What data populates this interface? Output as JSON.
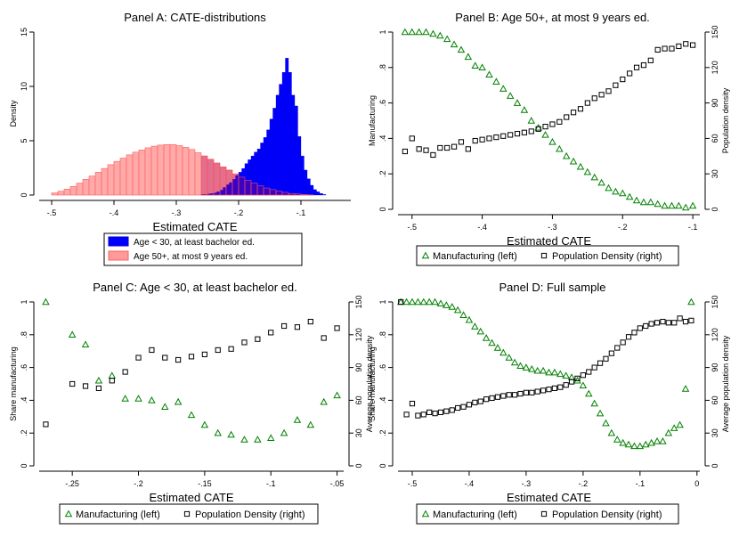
{
  "chart_data": [
    {
      "panel": "A",
      "type": "bar",
      "title": "Panel A: CATE-distributions",
      "xlabel": "Estimated CATE",
      "ylabel": "Density",
      "xlim": [
        -0.52,
        -0.02
      ],
      "ylim": [
        0,
        15
      ],
      "xticks": [
        -0.5,
        -0.4,
        -0.3,
        -0.2,
        -0.1
      ],
      "xtick_labels": [
        "-.5",
        "-.4",
        "-.3",
        "-.2",
        "-.1"
      ],
      "yticks": [
        0,
        5,
        10,
        15
      ],
      "ytick_labels": [
        "0",
        "5",
        "10",
        "15"
      ],
      "grid": false,
      "legend_position": "bottom",
      "legend_entries": [
        "Age < 30, at least bachelor ed.",
        "Age 50+, at most 9 years ed."
      ],
      "bin_width": 0.01,
      "series": [
        {
          "name": "Age 50+, at most 9 years ed.",
          "color": "#ff9a9a",
          "bin_starts": [
            -0.5,
            -0.49,
            -0.48,
            -0.47,
            -0.46,
            -0.45,
            -0.44,
            -0.43,
            -0.42,
            -0.41,
            -0.4,
            -0.39,
            -0.38,
            -0.37,
            -0.36,
            -0.35,
            -0.34,
            -0.33,
            -0.32,
            -0.31,
            -0.3,
            -0.29,
            -0.28,
            -0.27,
            -0.26,
            -0.25,
            -0.24,
            -0.23,
            -0.22,
            -0.21,
            -0.2,
            -0.19,
            -0.18,
            -0.17,
            -0.16,
            -0.15,
            -0.14,
            -0.13,
            -0.12,
            -0.11,
            -0.1,
            -0.09
          ],
          "values": [
            0.2,
            0.35,
            0.55,
            0.8,
            1.1,
            1.45,
            1.75,
            2.1,
            2.45,
            2.8,
            3.1,
            3.4,
            3.7,
            3.95,
            4.15,
            4.35,
            4.5,
            4.6,
            4.65,
            4.65,
            4.55,
            4.4,
            4.2,
            3.9,
            3.6,
            3.3,
            2.95,
            2.6,
            2.3,
            1.95,
            1.65,
            1.35,
            1.1,
            0.85,
            0.65,
            0.5,
            0.35,
            0.25,
            0.15,
            0.1,
            0.05,
            0.02
          ]
        },
        {
          "name": "Age < 30, at least bachelor ed.",
          "color": "#0000ff",
          "bin_starts": [
            -0.26,
            -0.255,
            -0.25,
            -0.245,
            -0.24,
            -0.235,
            -0.23,
            -0.225,
            -0.22,
            -0.215,
            -0.21,
            -0.205,
            -0.2,
            -0.195,
            -0.19,
            -0.185,
            -0.18,
            -0.175,
            -0.17,
            -0.165,
            -0.16,
            -0.155,
            -0.15,
            -0.145,
            -0.14,
            -0.135,
            -0.13,
            -0.125,
            -0.12,
            -0.115,
            -0.11,
            -0.105,
            -0.1,
            -0.095,
            -0.09,
            -0.085,
            -0.08,
            -0.075,
            -0.07,
            -0.065
          ],
          "bin_width": 0.005,
          "values": [
            0.05,
            0.05,
            0.1,
            0.15,
            0.2,
            0.3,
            0.45,
            0.7,
            0.95,
            1.15,
            1.45,
            1.8,
            2.1,
            2.45,
            2.9,
            3.25,
            3.6,
            3.95,
            4.25,
            4.8,
            5.3,
            6.0,
            7.0,
            8.0,
            9.2,
            10.2,
            11.3,
            12.6,
            11.3,
            9.2,
            8.2,
            5.4,
            3.6,
            2.3,
            1.5,
            0.9,
            0.5,
            0.3,
            0.15,
            0.05
          ]
        }
      ]
    },
    {
      "panel": "B",
      "type": "scatter",
      "title": "Panel B: Age 50+, at most 9 years ed.",
      "xlabel": "Estimated CATE",
      "ylabel": "Manufacturing",
      "y2label": "Population density",
      "xlim": [
        -0.52,
        -0.09
      ],
      "ylim": [
        0,
        1
      ],
      "y2lim": [
        0,
        150
      ],
      "xticks": [
        -0.5,
        -0.4,
        -0.3,
        -0.2,
        -0.1
      ],
      "xtick_labels": [
        "-.5",
        "-.4",
        "-.3",
        "-.2",
        "-.1"
      ],
      "yticks": [
        0,
        0.2,
        0.4,
        0.6,
        0.8,
        1
      ],
      "ytick_labels": [
        "0",
        ".2",
        ".4",
        ".6",
        ".8",
        "1"
      ],
      "y2ticks": [
        0,
        30,
        60,
        90,
        120,
        150
      ],
      "y2tick_labels": [
        "0",
        "30",
        "60",
        "90",
        "120",
        "150"
      ],
      "grid": false,
      "legend_position": "bottom",
      "legend_entries": [
        "Manufacturing (left)",
        "Population Density (right)"
      ],
      "series": [
        {
          "name": "Manufacturing (left)",
          "axis": "left",
          "marker": "triangle",
          "color": "#008000",
          "x": [
            -0.51,
            -0.5,
            -0.49,
            -0.48,
            -0.47,
            -0.46,
            -0.45,
            -0.44,
            -0.43,
            -0.42,
            -0.41,
            -0.4,
            -0.39,
            -0.38,
            -0.37,
            -0.36,
            -0.35,
            -0.34,
            -0.33,
            -0.32,
            -0.31,
            -0.3,
            -0.29,
            -0.28,
            -0.27,
            -0.26,
            -0.25,
            -0.24,
            -0.23,
            -0.22,
            -0.21,
            -0.2,
            -0.19,
            -0.18,
            -0.17,
            -0.16,
            -0.15,
            -0.14,
            -0.13,
            -0.12,
            -0.11,
            -0.1
          ],
          "y": [
            1.0,
            1.0,
            1.0,
            1.0,
            0.99,
            0.98,
            0.96,
            0.93,
            0.9,
            0.86,
            0.81,
            0.8,
            0.76,
            0.72,
            0.68,
            0.64,
            0.6,
            0.56,
            0.5,
            0.46,
            0.42,
            0.38,
            0.34,
            0.3,
            0.27,
            0.24,
            0.21,
            0.18,
            0.15,
            0.12,
            0.1,
            0.09,
            0.07,
            0.05,
            0.04,
            0.04,
            0.03,
            0.02,
            0.02,
            0.02,
            0.01,
            0.02
          ]
        },
        {
          "name": "Population Density (right)",
          "axis": "right",
          "marker": "square",
          "color": "#000000",
          "x": [
            -0.51,
            -0.5,
            -0.49,
            -0.48,
            -0.47,
            -0.46,
            -0.45,
            -0.44,
            -0.43,
            -0.42,
            -0.41,
            -0.4,
            -0.39,
            -0.38,
            -0.37,
            -0.36,
            -0.35,
            -0.34,
            -0.33,
            -0.32,
            -0.31,
            -0.3,
            -0.29,
            -0.28,
            -0.27,
            -0.26,
            -0.25,
            -0.24,
            -0.23,
            -0.22,
            -0.21,
            -0.2,
            -0.19,
            -0.18,
            -0.17,
            -0.16,
            -0.15,
            -0.14,
            -0.13,
            -0.12,
            -0.11,
            -0.1
          ],
          "y": [
            49,
            60,
            51,
            50,
            46,
            52,
            52,
            53,
            57,
            51,
            58,
            59,
            60,
            61,
            62,
            63,
            64,
            65,
            66,
            68,
            70,
            72,
            74,
            78,
            82,
            85,
            90,
            94,
            97,
            100,
            105,
            110,
            115,
            120,
            122,
            126,
            135,
            136,
            136,
            138,
            140,
            139
          ]
        }
      ]
    },
    {
      "panel": "C",
      "type": "scatter",
      "title": "Panel C: Age < 30, at least bachelor ed.",
      "xlabel": "Estimated CATE",
      "ylabel": "Share manufacturing",
      "y2label": "Average population density",
      "xlim": [
        -0.275,
        -0.045
      ],
      "ylim": [
        0,
        1
      ],
      "y2lim": [
        0,
        150
      ],
      "xticks": [
        -0.25,
        -0.2,
        -0.15,
        -0.1,
        -0.05
      ],
      "xtick_labels": [
        "-.25",
        "-.2",
        "-.15",
        "-.1",
        "-.05"
      ],
      "yticks": [
        0,
        0.2,
        0.4,
        0.6,
        0.8,
        1
      ],
      "ytick_labels": [
        "0",
        ".2",
        ".4",
        ".6",
        ".8",
        "1"
      ],
      "y2ticks": [
        0,
        30,
        60,
        90,
        120,
        150
      ],
      "y2tick_labels": [
        "0",
        "30",
        "60",
        "90",
        "120",
        "150"
      ],
      "grid": false,
      "legend_position": "bottom",
      "legend_entries": [
        "Manufacturing (left)",
        "Population Density (right)"
      ],
      "series": [
        {
          "name": "Manufacturing (left)",
          "axis": "left",
          "marker": "triangle",
          "color": "#008000",
          "x": [
            -0.27,
            -0.25,
            -0.24,
            -0.23,
            -0.22,
            -0.21,
            -0.2,
            -0.19,
            -0.18,
            -0.17,
            -0.16,
            -0.15,
            -0.14,
            -0.13,
            -0.12,
            -0.11,
            -0.1,
            -0.09,
            -0.08,
            -0.07,
            -0.06,
            -0.05
          ],
          "y": [
            1.0,
            0.8,
            0.74,
            0.52,
            0.55,
            0.41,
            0.41,
            0.4,
            0.36,
            0.39,
            0.31,
            0.25,
            0.2,
            0.19,
            0.16,
            0.16,
            0.17,
            0.2,
            0.28,
            0.25,
            0.39,
            0.43
          ]
        },
        {
          "name": "Population Density (right)",
          "axis": "right",
          "marker": "square",
          "color": "#000000",
          "x": [
            -0.27,
            -0.25,
            -0.24,
            -0.23,
            -0.22,
            -0.21,
            -0.2,
            -0.19,
            -0.18,
            -0.17,
            -0.16,
            -0.15,
            -0.14,
            -0.13,
            -0.12,
            -0.11,
            -0.1,
            -0.09,
            -0.08,
            -0.07,
            -0.06,
            -0.05
          ],
          "y": [
            38,
            75,
            73,
            71,
            78,
            86,
            99,
            106,
            99,
            97,
            100,
            102,
            106,
            107,
            113,
            116,
            122,
            128,
            127,
            132,
            117,
            126
          ]
        }
      ]
    },
    {
      "panel": "D",
      "type": "scatter",
      "title": "Panel D: Full sample",
      "xlabel": "Estimated CATE",
      "ylabel": "Share manufacturing",
      "y2label": "Average population density",
      "xlim": [
        -0.525,
        0.005
      ],
      "ylim": [
        0,
        1
      ],
      "y2lim": [
        0,
        150
      ],
      "xticks": [
        -0.5,
        -0.4,
        -0.3,
        -0.2,
        -0.1,
        0
      ],
      "xtick_labels": [
        "-.5",
        "-.4",
        "-.3",
        "-.2",
        "-.1",
        "0"
      ],
      "yticks": [
        0,
        0.2,
        0.4,
        0.6,
        0.8,
        1
      ],
      "ytick_labels": [
        "0",
        ".2",
        ".4",
        ".6",
        ".8",
        "1"
      ],
      "y2ticks": [
        0,
        30,
        60,
        90,
        120,
        150
      ],
      "y2tick_labels": [
        "0",
        "30",
        "60",
        "90",
        "120",
        "150"
      ],
      "grid": false,
      "legend_position": "bottom",
      "legend_entries": [
        "Manufacturing (left)",
        "Population Density (right)"
      ],
      "series": [
        {
          "name": "Manufacturing (left)",
          "axis": "left",
          "marker": "triangle",
          "color": "#008000",
          "x": [
            -0.52,
            -0.51,
            -0.5,
            -0.49,
            -0.48,
            -0.47,
            -0.46,
            -0.45,
            -0.44,
            -0.43,
            -0.42,
            -0.41,
            -0.4,
            -0.39,
            -0.38,
            -0.37,
            -0.36,
            -0.35,
            -0.34,
            -0.33,
            -0.32,
            -0.31,
            -0.3,
            -0.29,
            -0.28,
            -0.27,
            -0.26,
            -0.25,
            -0.24,
            -0.23,
            -0.22,
            -0.21,
            -0.2,
            -0.19,
            -0.18,
            -0.17,
            -0.16,
            -0.15,
            -0.14,
            -0.13,
            -0.12,
            -0.11,
            -0.1,
            -0.09,
            -0.08,
            -0.07,
            -0.06,
            -0.05,
            -0.04,
            -0.03,
            -0.02,
            -0.01
          ],
          "y": [
            1.0,
            1.0,
            1.0,
            1.0,
            1.0,
            1.0,
            1.0,
            0.99,
            0.98,
            0.97,
            0.95,
            0.92,
            0.89,
            0.85,
            0.82,
            0.78,
            0.75,
            0.72,
            0.69,
            0.66,
            0.63,
            0.61,
            0.6,
            0.59,
            0.58,
            0.58,
            0.57,
            0.57,
            0.56,
            0.55,
            0.54,
            0.52,
            0.49,
            0.44,
            0.38,
            0.32,
            0.26,
            0.2,
            0.16,
            0.14,
            0.13,
            0.12,
            0.12,
            0.13,
            0.14,
            0.15,
            0.15,
            0.2,
            0.23,
            0.25,
            0.47,
            1.0
          ]
        },
        {
          "name": "Population Density (right)",
          "axis": "right",
          "marker": "square",
          "color": "#000000",
          "x": [
            -0.52,
            -0.51,
            -0.5,
            -0.49,
            -0.48,
            -0.47,
            -0.46,
            -0.45,
            -0.44,
            -0.43,
            -0.42,
            -0.41,
            -0.4,
            -0.39,
            -0.38,
            -0.37,
            -0.36,
            -0.35,
            -0.34,
            -0.33,
            -0.32,
            -0.31,
            -0.3,
            -0.29,
            -0.28,
            -0.27,
            -0.26,
            -0.25,
            -0.24,
            -0.23,
            -0.22,
            -0.21,
            -0.2,
            -0.19,
            -0.18,
            -0.17,
            -0.16,
            -0.15,
            -0.14,
            -0.13,
            -0.12,
            -0.11,
            -0.1,
            -0.09,
            -0.08,
            -0.07,
            -0.06,
            -0.05,
            -0.04,
            -0.03,
            -0.02,
            -0.01
          ],
          "y": [
            150,
            47,
            57,
            46,
            47,
            49,
            48,
            49,
            50,
            51,
            53,
            54,
            56,
            58,
            59,
            61,
            62,
            63,
            64,
            65,
            65,
            66,
            67,
            67,
            68,
            69,
            70,
            71,
            72,
            74,
            77,
            80,
            83,
            86,
            90,
            94,
            98,
            103,
            108,
            113,
            118,
            122,
            126,
            128,
            130,
            131,
            132,
            131,
            131,
            135,
            132,
            133
          ]
        }
      ]
    }
  ]
}
